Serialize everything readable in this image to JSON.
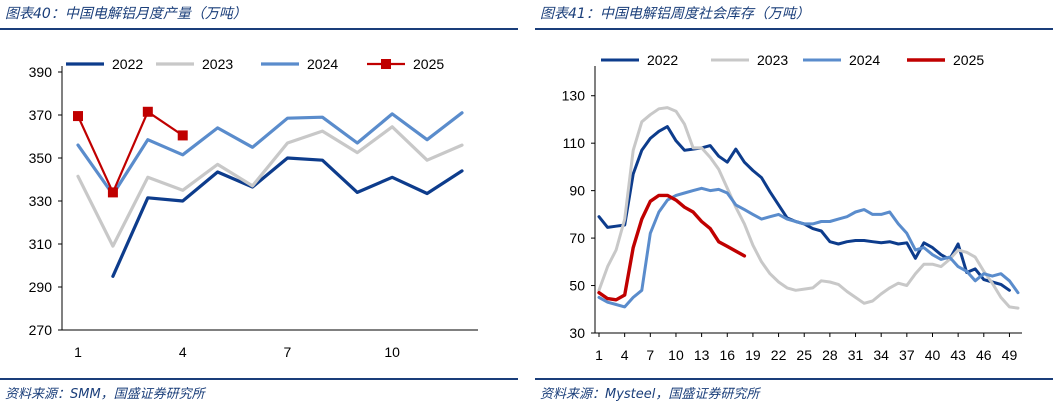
{
  "chart_data": [
    {
      "type": "line",
      "title": "图表40：中国电解铝月度产量（万吨）",
      "source": "资料来源：SMM，国盛证券研究所",
      "ylim": [
        270,
        390
      ],
      "yticks": [
        270,
        290,
        310,
        330,
        350,
        370,
        390
      ],
      "xlim": [
        1,
        12
      ],
      "xticks": [
        1,
        4,
        7,
        10
      ],
      "legend": "top",
      "series": [
        {
          "name": "2022",
          "color": "#0d3c8c",
          "width": 3.2,
          "marker": "none",
          "x": [
            2,
            3,
            4,
            5,
            6,
            7,
            8,
            9,
            10,
            11,
            12
          ],
          "y": [
            295,
            331.5,
            330,
            343.5,
            336.5,
            350,
            349,
            334,
            341,
            333.5,
            344
          ]
        },
        {
          "name": "2023",
          "color": "#c8c8c8",
          "width": 3.2,
          "marker": "none",
          "x": [
            1,
            2,
            3,
            4,
            5,
            6,
            7,
            8,
            9,
            10,
            11,
            12
          ],
          "y": [
            341.5,
            309,
            341,
            335,
            347,
            337,
            357,
            362.5,
            352.5,
            364.5,
            349,
            356
          ]
        },
        {
          "name": "2024",
          "color": "#5a8ccc",
          "width": 3.2,
          "marker": "none",
          "x": [
            1,
            2,
            3,
            4,
            5,
            6,
            7,
            8,
            9,
            10,
            11,
            12
          ],
          "y": [
            356,
            333,
            358.5,
            351.5,
            364,
            355,
            368.5,
            369,
            357,
            370.5,
            358.5,
            371
          ]
        },
        {
          "name": "2025",
          "color": "#c00000",
          "width": 2.2,
          "marker": "square",
          "x": [
            1,
            2,
            3,
            4
          ],
          "y": [
            369.5,
            334,
            371.5,
            360.5
          ]
        }
      ]
    },
    {
      "type": "line",
      "title": "图表41：中国电解铝周度社会库存（万吨）",
      "source": "资料来源：Mysteel，国盛证券研究所",
      "ylim": [
        30,
        140
      ],
      "yticks": [
        30,
        50,
        70,
        90,
        110,
        130
      ],
      "xlim": [
        1,
        50
      ],
      "xticks": [
        1,
        4,
        7,
        10,
        13,
        16,
        19,
        22,
        25,
        28,
        31,
        34,
        37,
        40,
        43,
        46,
        49
      ],
      "legend": "top",
      "series": [
        {
          "name": "2022",
          "color": "#0d3c8c",
          "width": 3.0,
          "x": [
            1,
            2,
            3,
            4,
            5,
            6,
            7,
            8,
            9,
            10,
            11,
            12,
            13,
            14,
            15,
            16,
            17,
            18,
            19,
            20,
            21,
            22,
            23,
            24,
            25,
            26,
            27,
            28,
            29,
            30,
            31,
            32,
            33,
            34,
            35,
            36,
            37,
            38,
            39,
            40,
            41,
            42,
            43,
            44,
            45,
            46,
            47,
            48,
            49
          ],
          "y": [
            79,
            74.5,
            75,
            75.5,
            97,
            107,
            112,
            115,
            117,
            111,
            107,
            107.5,
            108,
            109,
            104.5,
            102,
            107.5,
            102,
            98.5,
            95.5,
            89.5,
            84,
            78.5,
            77,
            76,
            74,
            73,
            68.5,
            67.5,
            68.5,
            69,
            69,
            68.5,
            68,
            68.5,
            67.5,
            68,
            61.5,
            68,
            66,
            63,
            61,
            67.5,
            55.5,
            57,
            52.5,
            51.5,
            50.5,
            48
          ]
        },
        {
          "name": "2023",
          "color": "#c8c8c8",
          "width": 3.0,
          "x": [
            1,
            2,
            3,
            4,
            5,
            6,
            7,
            8,
            9,
            10,
            11,
            12,
            13,
            14,
            15,
            16,
            17,
            18,
            19,
            20,
            21,
            22,
            23,
            24,
            25,
            26,
            27,
            28,
            29,
            30,
            31,
            32,
            33,
            34,
            35,
            36,
            37,
            38,
            39,
            40,
            41,
            42,
            43,
            44,
            45,
            46,
            47,
            48,
            49,
            50
          ],
          "y": [
            48,
            58,
            65,
            78,
            107,
            119,
            122,
            124.5,
            125,
            123.5,
            118,
            108,
            108,
            104,
            99,
            91,
            83,
            76,
            67,
            60,
            55,
            51.5,
            49,
            48,
            48.5,
            49,
            52,
            51.5,
            50.5,
            47.5,
            45,
            42.5,
            43.5,
            46.5,
            49,
            51,
            50,
            55,
            59,
            59,
            58,
            61,
            65,
            64,
            62,
            56,
            51,
            45,
            41,
            40.5
          ]
        },
        {
          "name": "2024",
          "color": "#5a8ccc",
          "width": 3.0,
          "x": [
            1,
            2,
            3,
            4,
            5,
            6,
            7,
            8,
            9,
            10,
            11,
            12,
            13,
            14,
            15,
            16,
            17,
            18,
            19,
            20,
            21,
            22,
            23,
            24,
            25,
            26,
            27,
            28,
            29,
            30,
            31,
            32,
            33,
            34,
            35,
            36,
            37,
            38,
            39,
            40,
            41,
            42,
            43,
            44,
            45,
            46,
            47,
            48,
            49,
            50
          ],
          "y": [
            45,
            43,
            42,
            41,
            45,
            48,
            72,
            81,
            86,
            88,
            89,
            90,
            91,
            90,
            90.5,
            89,
            84,
            82,
            80,
            78,
            79,
            80,
            78,
            77,
            76,
            76,
            77,
            77,
            78,
            79,
            81,
            82,
            80,
            80,
            81,
            76,
            72,
            65,
            66,
            63,
            61,
            62,
            58,
            56,
            52,
            55,
            54,
            55,
            52,
            47
          ]
        },
        {
          "name": "2025",
          "color": "#c00000",
          "width": 3.4,
          "x": [
            1,
            2,
            3,
            4,
            5,
            6,
            7,
            8,
            9,
            10,
            11,
            12,
            13,
            14,
            15,
            16,
            17,
            18
          ],
          "y": [
            47,
            44.5,
            44,
            46,
            66,
            78,
            85.5,
            88,
            88,
            86,
            83,
            81,
            77,
            74,
            68.5,
            66.5,
            64.5,
            62.5
          ]
        }
      ]
    }
  ]
}
